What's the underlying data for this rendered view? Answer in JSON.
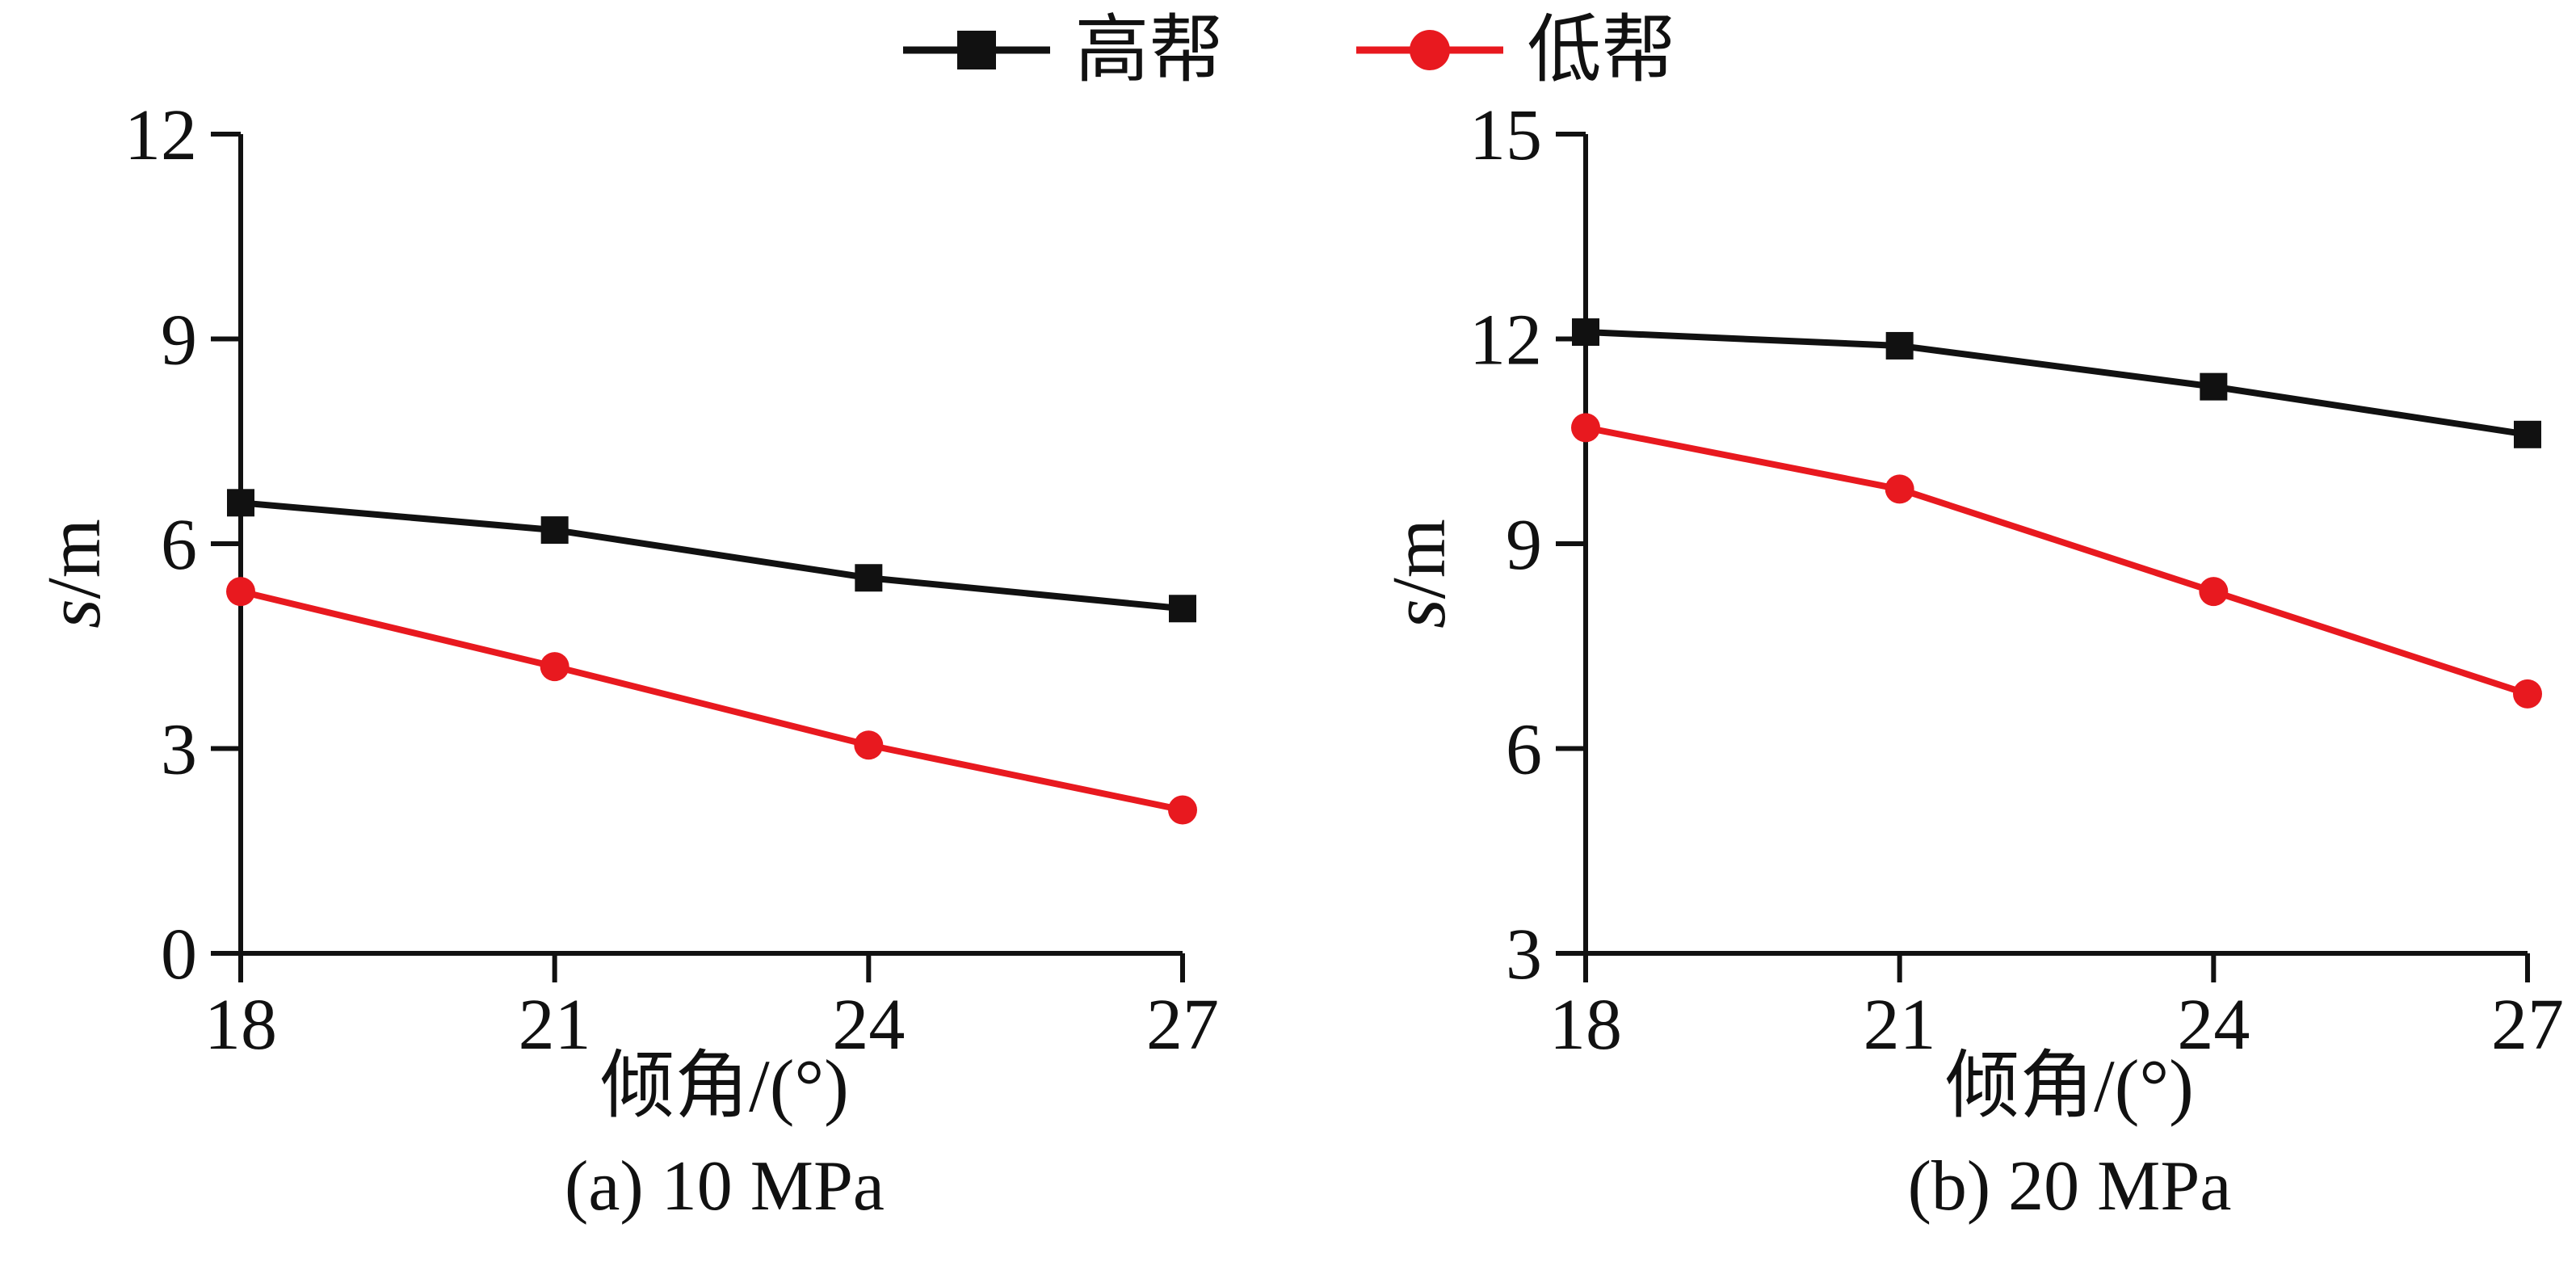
{
  "colors": {
    "series_high": "#111111",
    "series_low": "#e8191f",
    "axis": "#111111"
  },
  "legend": {
    "items": [
      {
        "label": "高帮",
        "marker": "square",
        "color": "#111111"
      },
      {
        "label": "低帮",
        "marker": "circle",
        "color": "#e8191f"
      }
    ]
  },
  "chart_data": [
    {
      "type": "line",
      "caption": "(a) 10 MPa",
      "xlabel": "倾角/(°)",
      "ylabel_italic": "s",
      "ylabel_rest": "/m",
      "x": [
        18,
        21,
        24,
        27
      ],
      "xticks": [
        18,
        21,
        24,
        27
      ],
      "yticks": [
        0,
        3,
        6,
        9,
        12
      ],
      "xlim": [
        18,
        27
      ],
      "ylim": [
        0,
        12
      ],
      "grid": false,
      "legend_position": "top-center",
      "series": [
        {
          "name": "高帮",
          "marker": "square",
          "color": "#111111",
          "values": [
            6.6,
            6.2,
            5.5,
            5.05
          ]
        },
        {
          "name": "低帮",
          "marker": "circle",
          "color": "#e8191f",
          "values": [
            5.3,
            4.2,
            3.05,
            2.1
          ]
        }
      ]
    },
    {
      "type": "line",
      "caption": "(b) 20 MPa",
      "xlabel": "倾角/(°)",
      "ylabel_italic": "s",
      "ylabel_rest": "/m",
      "x": [
        18,
        21,
        24,
        27
      ],
      "xticks": [
        18,
        21,
        24,
        27
      ],
      "yticks": [
        3,
        6,
        9,
        12,
        15
      ],
      "xlim": [
        18,
        27
      ],
      "ylim": [
        3,
        15
      ],
      "grid": false,
      "legend_position": "top-center",
      "series": [
        {
          "name": "高帮",
          "marker": "square",
          "color": "#111111",
          "values": [
            12.1,
            11.9,
            11.3,
            10.6
          ]
        },
        {
          "name": "低帮",
          "marker": "circle",
          "color": "#e8191f",
          "values": [
            10.7,
            9.8,
            8.3,
            6.8
          ]
        }
      ]
    }
  ]
}
